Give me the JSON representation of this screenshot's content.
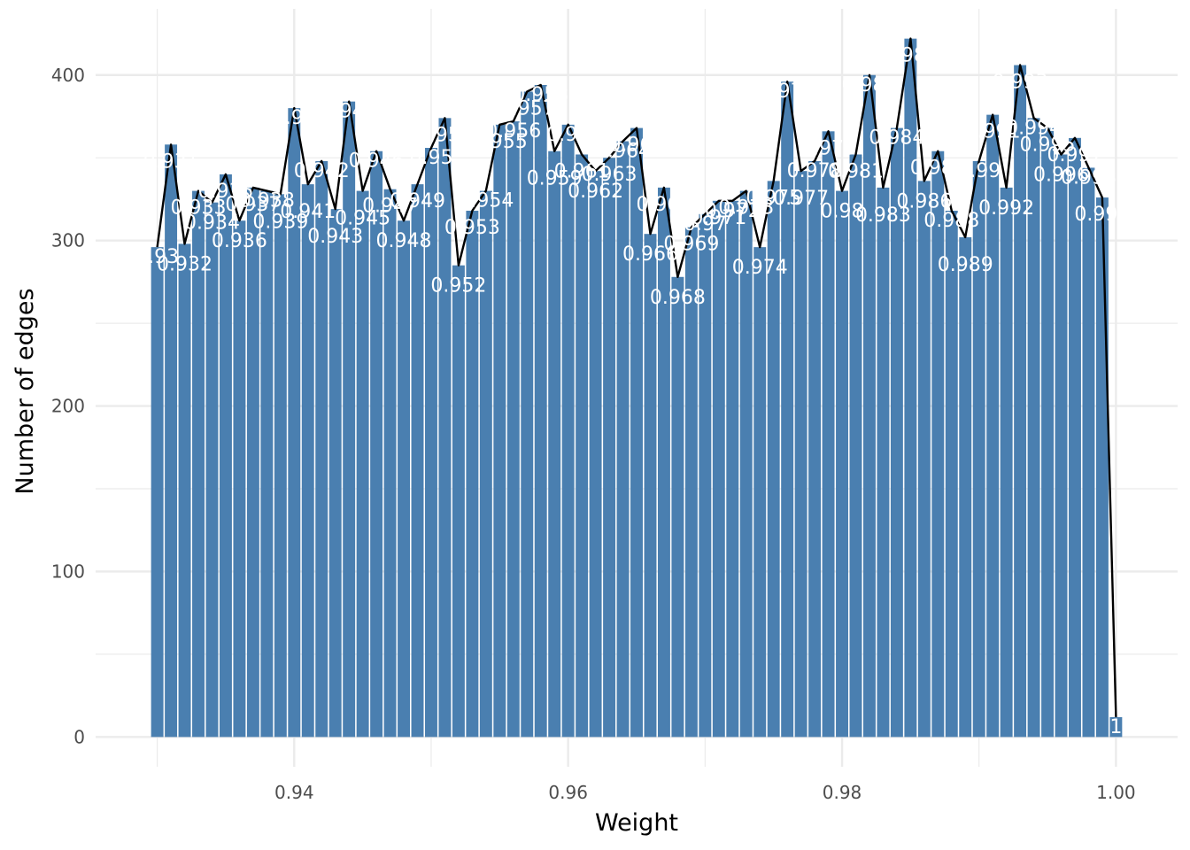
{
  "chart_data": {
    "type": "bar",
    "title": "",
    "xlabel": "Weight",
    "ylabel": "Number of edges",
    "xlim": [
      0.9255,
      1.0045
    ],
    "ylim": [
      -18,
      440
    ],
    "x_ticks": [
      "0.94",
      "0.96",
      "0.98",
      "1.00"
    ],
    "y_ticks": [
      "0",
      "100",
      "200",
      "300",
      "400"
    ],
    "x_tick_values": [
      0.94,
      0.96,
      0.98,
      1.0
    ],
    "y_tick_values": [
      0,
      100,
      200,
      300,
      400
    ],
    "x_minor_values": [
      0.93,
      0.95,
      0.97,
      0.99
    ],
    "y_minor_values": [
      50,
      150,
      250,
      350
    ],
    "grid": true,
    "bin_width": 0.001,
    "label_decimals": 3,
    "overlay_line": true,
    "colors": {
      "bar": "#4a7fb0",
      "line": "#000000",
      "label": "#ffffff",
      "grid": "#ebebeb"
    },
    "x": [
      0.93,
      0.931,
      0.932,
      0.933,
      0.934,
      0.935,
      0.936,
      0.937,
      0.938,
      0.939,
      0.94,
      0.941,
      0.942,
      0.943,
      0.944,
      0.945,
      0.946,
      0.947,
      0.948,
      0.949,
      0.95,
      0.951,
      0.952,
      0.953,
      0.954,
      0.955,
      0.956,
      0.957,
      0.958,
      0.959,
      0.96,
      0.961,
      0.962,
      0.963,
      0.964,
      0.965,
      0.966,
      0.967,
      0.968,
      0.969,
      0.97,
      0.971,
      0.972,
      0.973,
      0.974,
      0.975,
      0.976,
      0.977,
      0.978,
      0.979,
      0.98,
      0.981,
      0.982,
      0.983,
      0.984,
      0.985,
      0.986,
      0.987,
      0.988,
      0.989,
      0.99,
      0.991,
      0.992,
      0.993,
      0.994,
      0.995,
      0.996,
      0.997,
      0.998,
      0.999,
      1.0
    ],
    "values": [
      296,
      358,
      298,
      330,
      323,
      340,
      312,
      332,
      330,
      328,
      380,
      334,
      348,
      319,
      384,
      330,
      354,
      331,
      312,
      334,
      356,
      374,
      285,
      318,
      330,
      370,
      372,
      390,
      394,
      354,
      370,
      352,
      342,
      350,
      360,
      368,
      304,
      332,
      278,
      308,
      316,
      324,
      324,
      330,
      296,
      336,
      396,
      342,
      348,
      366,
      330,
      352,
      400,
      332,
      368,
      422,
      336,
      354,
      318,
      302,
      348,
      376,
      332,
      406,
      374,
      368,
      352,
      362,
      344,
      326,
      12
    ]
  }
}
